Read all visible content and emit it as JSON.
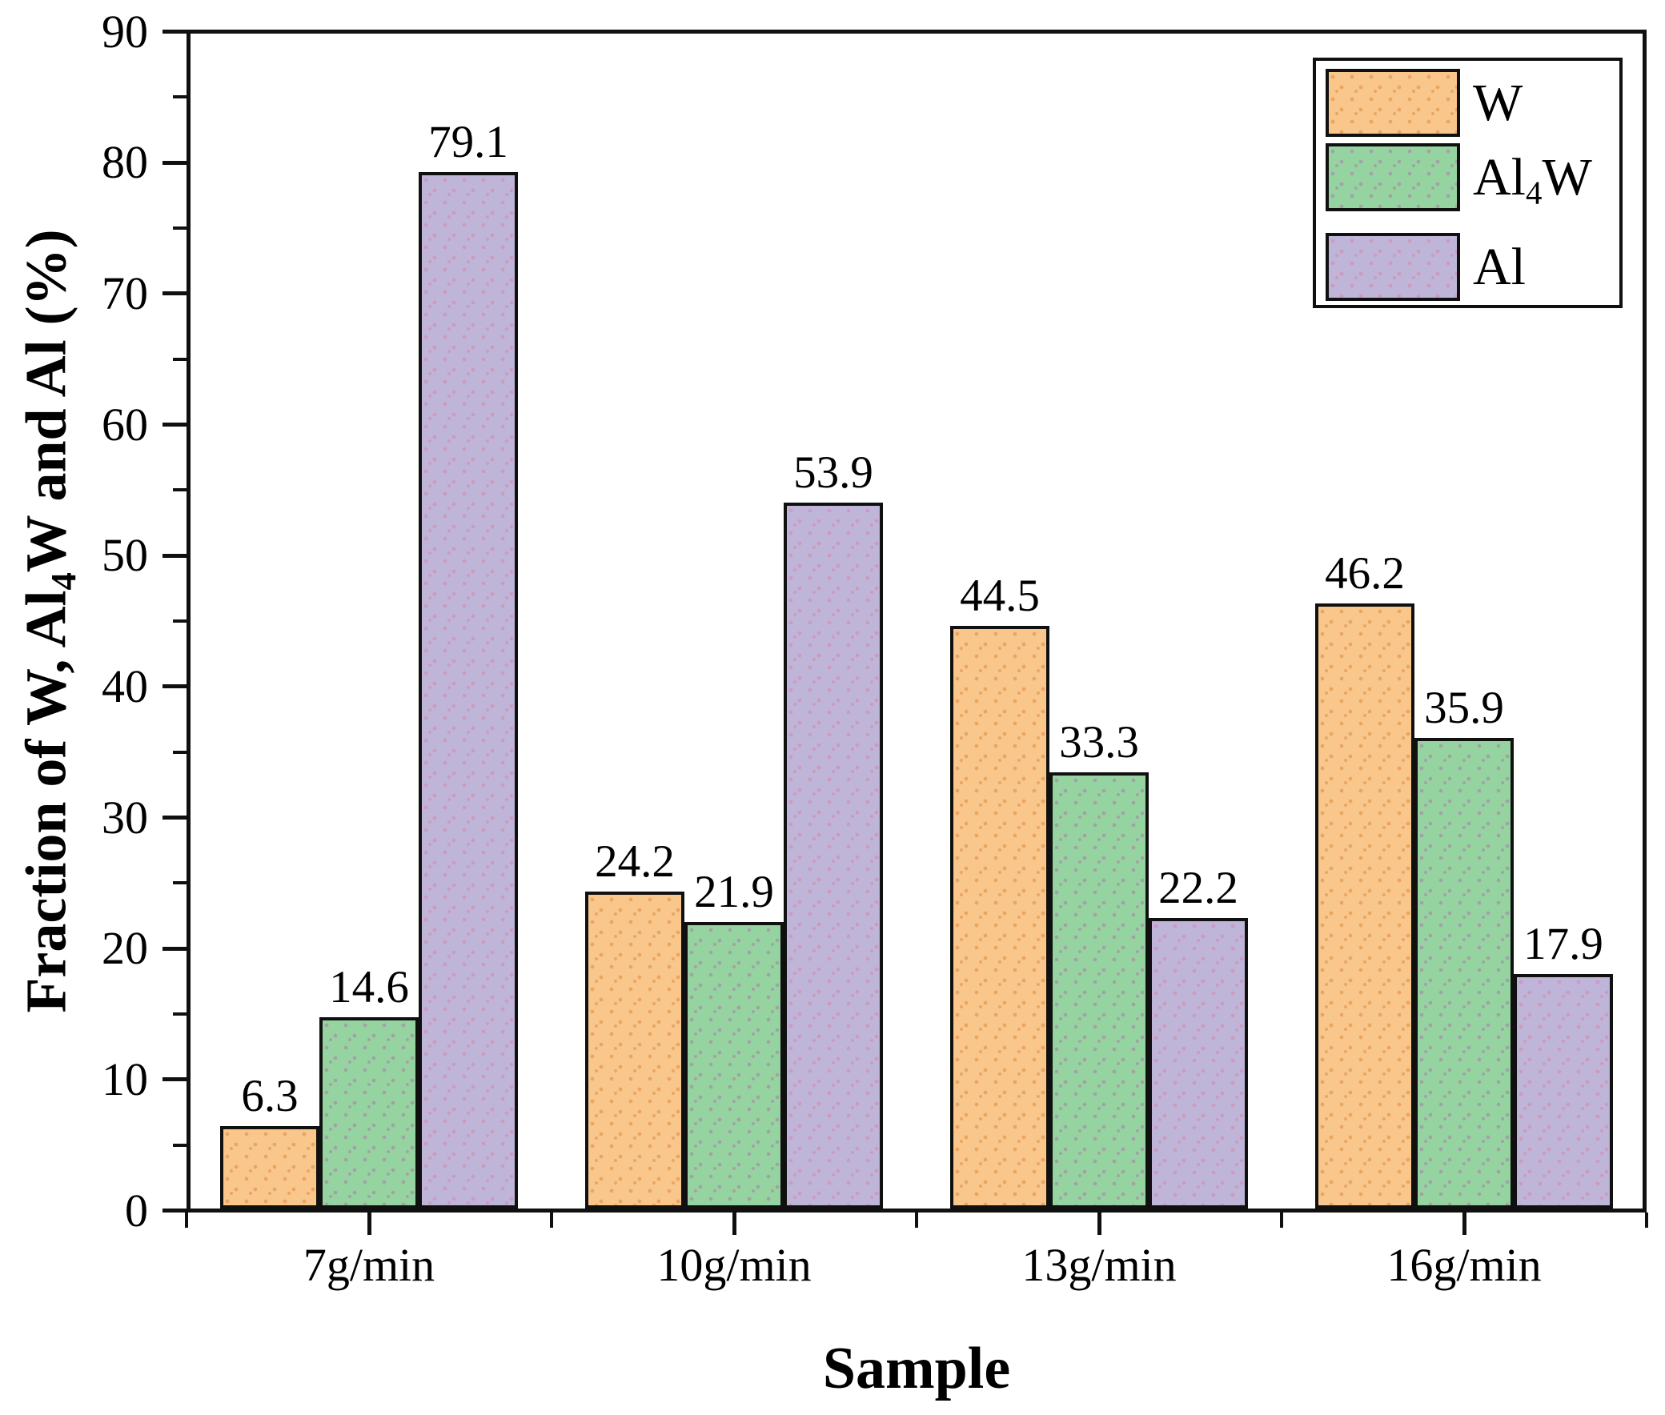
{
  "chart_data": {
    "type": "bar",
    "title": "",
    "categories": [
      "7g/min",
      "10g/min",
      "13g/min",
      "16g/min"
    ],
    "series": [
      {
        "name": "W",
        "name_parts": [
          {
            "t": "W"
          }
        ],
        "values": [
          6.3,
          24.2,
          44.5,
          46.2
        ],
        "fill": "#F9C68C",
        "dot_color": "rgba(222,138,58,0.55)"
      },
      {
        "name": "Al4W",
        "name_parts": [
          {
            "t": "Al"
          },
          {
            "t": "4",
            "sub": true
          },
          {
            "t": "W"
          }
        ],
        "values": [
          14.6,
          21.9,
          33.3,
          35.9
        ],
        "fill": "#95D4A0",
        "dot_color": "rgba(176,112,170,0.50)"
      },
      {
        "name": "Al",
        "name_parts": [
          {
            "t": "Al"
          }
        ],
        "values": [
          79.1,
          53.9,
          22.2,
          17.9
        ],
        "fill": "#BEB5D9",
        "dot_color": "rgba(221,128,158,0.50)"
      }
    ],
    "bar_value_labels": [
      [
        "6.3",
        "24.2",
        "44.5",
        "46.2"
      ],
      [
        "14.6",
        "21.9",
        "33.3",
        "35.9"
      ],
      [
        "79.1",
        "53.9",
        "22.2",
        "17.9"
      ]
    ],
    "xlabel": "Sample",
    "ylabel": "Fraction of W, Al4W and Al (%)",
    "ylabel_parts": [
      {
        "t": "Fraction of W, Al"
      },
      {
        "t": "4",
        "sub": true
      },
      {
        "t": "W and Al (%)"
      }
    ],
    "ylim": [
      0,
      90
    ],
    "yticks": [
      "0",
      "10",
      "20",
      "30",
      "40",
      "50",
      "60",
      "70",
      "80",
      "90"
    ],
    "ytick_step": 10,
    "yminor_step": 5,
    "grid": false,
    "legend_position": "top-right",
    "legend_entries": [
      "W",
      "Al4W",
      "Al"
    ]
  },
  "colors": {
    "background": "#ffffff",
    "axis": "#101010",
    "text": "#000000"
  }
}
